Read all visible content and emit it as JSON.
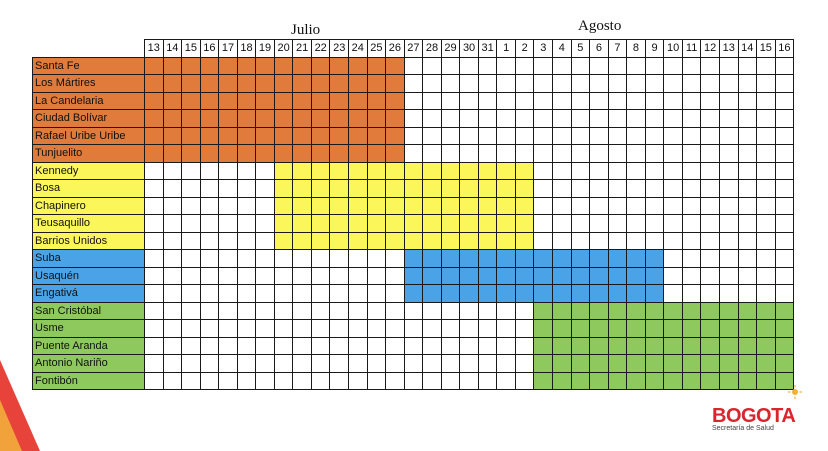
{
  "months": {
    "julio": "Julio",
    "agosto": "Agosto"
  },
  "days": [
    "13",
    "14",
    "15",
    "16",
    "17",
    "18",
    "19",
    "20",
    "21",
    "22",
    "23",
    "24",
    "25",
    "26",
    "27",
    "28",
    "29",
    "30",
    "31",
    "1",
    "2",
    "3",
    "4",
    "5",
    "6",
    "7",
    "8",
    "9",
    "10",
    "11",
    "12",
    "13",
    "14",
    "15",
    "16"
  ],
  "colors": {
    "orange": "#e07b3c",
    "yellow": "#fbf65a",
    "blue": "#4aa3e6",
    "green": "#8ec95d"
  },
  "rows": [
    {
      "name": "Santa Fe",
      "color": "orange",
      "start": 0,
      "end": 13
    },
    {
      "name": "Los Mártires",
      "color": "orange",
      "start": 0,
      "end": 13
    },
    {
      "name": "La Candelaria",
      "color": "orange",
      "start": 0,
      "end": 13
    },
    {
      "name": "Ciudad Bolívar",
      "color": "orange",
      "start": 0,
      "end": 13
    },
    {
      "name": "Rafael Uribe Uribe",
      "color": "orange",
      "start": 0,
      "end": 13
    },
    {
      "name": "Tunjuelito",
      "color": "orange",
      "start": 0,
      "end": 13
    },
    {
      "name": "Kennedy",
      "color": "yellow",
      "start": 7,
      "end": 20
    },
    {
      "name": "Bosa",
      "color": "yellow",
      "start": 7,
      "end": 20
    },
    {
      "name": "Chapinero",
      "color": "yellow",
      "start": 7,
      "end": 20
    },
    {
      "name": "Teusaquillo",
      "color": "yellow",
      "start": 7,
      "end": 20
    },
    {
      "name": "Barrios Unidos",
      "color": "yellow",
      "start": 7,
      "end": 20
    },
    {
      "name": "Suba",
      "color": "blue",
      "start": 14,
      "end": 27
    },
    {
      "name": "Usaquén",
      "color": "blue",
      "start": 14,
      "end": 27
    },
    {
      "name": "Engativá",
      "color": "blue",
      "start": 14,
      "end": 27
    },
    {
      "name": "San Cristóbal",
      "color": "green",
      "start": 21,
      "end": 34
    },
    {
      "name": "Usme",
      "color": "green",
      "start": 21,
      "end": 34
    },
    {
      "name": "Puente Aranda",
      "color": "green",
      "start": 21,
      "end": 34
    },
    {
      "name": "Antonio Nariño",
      "color": "green",
      "start": 21,
      "end": 34
    },
    {
      "name": "Fontibón",
      "color": "green",
      "start": 21,
      "end": 34
    }
  ],
  "logo": {
    "word": "BOGOTA",
    "subtitle": "Secretaría de Salud"
  }
}
